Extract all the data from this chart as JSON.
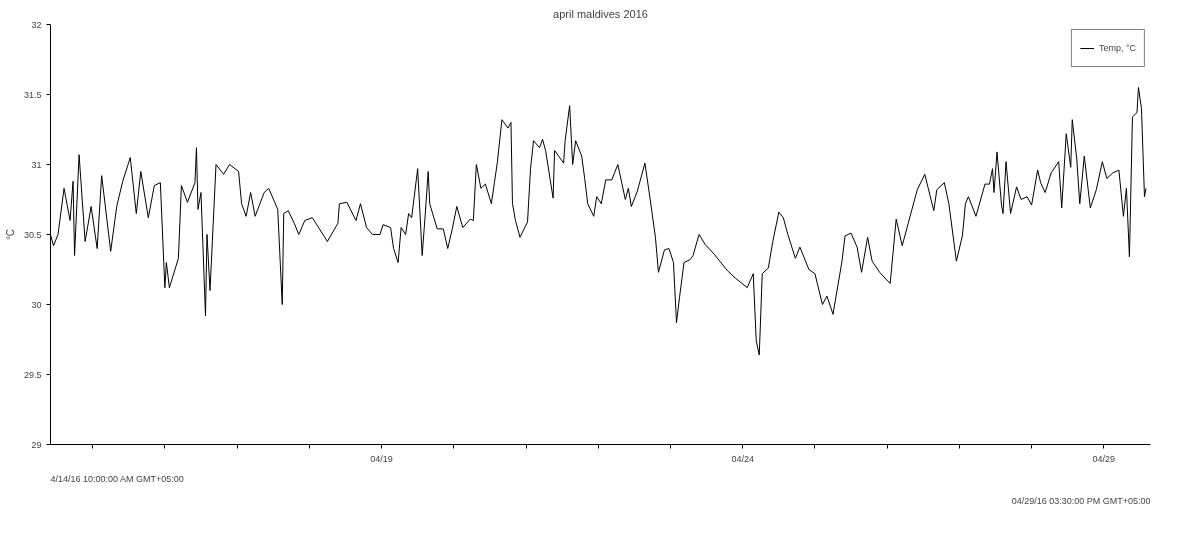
{
  "chart_data": {
    "type": "line",
    "title": "april maldives 2016",
    "ylabel": "°C",
    "annotations": [
      "4/14/16 10:00:00 AM GMT+05:00",
      "04/29/16 03:30:00 PM GMT+05:00"
    ],
    "xlim": [
      "2016-04-14T10:00",
      "2016-04-29T15:30"
    ],
    "xticks": [
      {
        "value": "2016-04-15",
        "label": null
      },
      {
        "value": "2016-04-16",
        "label": null
      },
      {
        "value": "2016-04-17",
        "label": null
      },
      {
        "value": "2016-04-18",
        "label": null
      },
      {
        "value": "2016-04-19",
        "label": "04/19"
      },
      {
        "value": "2016-04-20",
        "label": null
      },
      {
        "value": "2016-04-21",
        "label": null
      },
      {
        "value": "2016-04-22",
        "label": null
      },
      {
        "value": "2016-04-23",
        "label": null
      },
      {
        "value": "2016-04-24",
        "label": "04/24"
      },
      {
        "value": "2016-04-25",
        "label": null
      },
      {
        "value": "2016-04-26",
        "label": null
      },
      {
        "value": "2016-04-27",
        "label": null
      },
      {
        "value": "2016-04-28",
        "label": null
      },
      {
        "value": "2016-04-29",
        "label": "04/29"
      }
    ],
    "ylim": [
      29,
      32
    ],
    "yticks": [
      29,
      29.5,
      30,
      30.5,
      31,
      31.5,
      32
    ],
    "grid": false,
    "legend": "top right",
    "marker": "none",
    "line_style": "solid",
    "series": [
      {
        "name": "Temp, °C",
        "color": "#000000",
        "x": [
          "2016-04-14T10:00",
          "2016-04-14T11:00",
          "2016-04-14T12:30",
          "2016-04-14T14:30",
          "2016-04-14T16:30",
          "2016-04-14T17:30",
          "2016-04-14T18:00",
          "2016-04-14T19:30",
          "2016-04-14T21:30",
          "2016-04-14T23:30",
          "2016-04-15T01:30",
          "2016-04-15T03:00",
          "2016-04-15T06:00",
          "2016-04-15T08:00",
          "2016-04-15T10:00",
          "2016-04-15T12:30",
          "2016-04-15T14:30",
          "2016-04-15T16:00",
          "2016-04-15T18:30",
          "2016-04-15T20:30",
          "2016-04-15T22:30",
          "2016-04-16T00:00",
          "2016-04-16T00:30",
          "2016-04-16T01:30",
          "2016-04-16T04:30",
          "2016-04-16T05:30",
          "2016-04-16T07:30",
          "2016-04-16T10:00",
          "2016-04-16T10:30",
          "2016-04-16T11:00",
          "2016-04-16T12:00",
          "2016-04-16T13:30",
          "2016-04-16T14:00",
          "2016-04-16T15:00",
          "2016-04-16T17:00",
          "2016-04-16T19:30",
          "2016-04-16T21:30",
          "2016-04-17T00:30",
          "2016-04-17T01:30",
          "2016-04-17T03:00",
          "2016-04-17T04:30",
          "2016-04-17T06:00",
          "2016-04-17T09:00",
          "2016-04-17T10:30",
          "2016-04-17T13:30",
          "2016-04-17T15:00",
          "2016-04-17T15:30",
          "2016-04-17T17:00",
          "2016-04-17T19:00",
          "2016-04-17T20:30",
          "2016-04-17T22:30",
          "2016-04-18T01:00",
          "2016-04-18T06:00",
          "2016-04-18T09:30",
          "2016-04-18T10:00",
          "2016-04-18T12:30",
          "2016-04-18T15:30",
          "2016-04-18T17:00",
          "2016-04-18T19:00",
          "2016-04-18T21:00",
          "2016-04-18T23:30",
          "2016-04-19T00:30",
          "2016-04-19T03:00",
          "2016-04-19T04:00",
          "2016-04-19T05:30",
          "2016-04-19T06:30",
          "2016-04-19T08:00",
          "2016-04-19T09:00",
          "2016-04-19T10:00",
          "2016-04-19T12:00",
          "2016-04-19T13:30",
          "2016-04-19T14:30",
          "2016-04-19T15:30",
          "2016-04-19T16:00",
          "2016-04-19T18:30",
          "2016-04-19T20:30",
          "2016-04-19T22:00",
          "2016-04-19T23:30",
          "2016-04-20T01:00",
          "2016-04-20T03:00",
          "2016-04-20T05:30",
          "2016-04-20T06:30",
          "2016-04-20T07:30",
          "2016-04-20T09:00",
          "2016-04-20T10:30",
          "2016-04-20T12:30",
          "2016-04-20T13:30",
          "2016-04-20T14:30",
          "2016-04-20T16:00",
          "2016-04-20T18:00",
          "2016-04-20T19:00",
          "2016-04-20T19:30",
          "2016-04-20T20:30",
          "2016-04-20T22:00",
          "2016-04-21T00:30",
          "2016-04-21T01:30",
          "2016-04-21T02:30",
          "2016-04-21T04:30",
          "2016-04-21T05:30",
          "2016-04-21T06:30",
          "2016-04-21T09:00",
          "2016-04-21T09:30",
          "2016-04-21T12:30",
          "2016-04-21T13:00",
          "2016-04-21T14:30",
          "2016-04-21T15:30",
          "2016-04-21T16:30",
          "2016-04-21T18:30",
          "2016-04-21T19:30",
          "2016-04-21T20:30",
          "2016-04-21T22:30",
          "2016-04-21T23:30",
          "2016-04-22T01:00",
          "2016-04-22T02:30",
          "2016-04-22T04:30",
          "2016-04-22T06:30",
          "2016-04-22T09:00",
          "2016-04-22T10:00",
          "2016-04-22T11:00",
          "2016-04-22T13:00",
          "2016-04-22T15:30",
          "2016-04-22T17:00",
          "2016-04-22T19:00",
          "2016-04-22T20:00",
          "2016-04-22T22:00",
          "2016-04-22T23:30",
          "2016-04-23T01:00",
          "2016-04-23T02:00",
          "2016-04-23T03:00",
          "2016-04-23T04:30",
          "2016-04-23T06:30",
          "2016-04-23T07:30",
          "2016-04-23T09:30",
          "2016-04-23T11:30",
          "2016-04-23T14:30",
          "2016-04-23T19:00",
          "2016-04-23T21:30",
          "2016-04-24T01:30",
          "2016-04-24T03:30",
          "2016-04-24T04:30",
          "2016-04-24T05:30",
          "2016-04-24T06:30",
          "2016-04-24T08:30",
          "2016-04-24T10:00",
          "2016-04-24T12:00",
          "2016-04-24T13:30",
          "2016-04-24T15:00",
          "2016-04-24T17:30",
          "2016-04-24T19:00",
          "2016-04-24T22:00",
          "2016-04-25T00:00",
          "2016-04-25T02:30",
          "2016-04-25T04:00",
          "2016-04-25T06:00",
          "2016-04-25T09:00",
          "2016-04-25T10:00",
          "2016-04-25T12:00",
          "2016-04-25T14:00",
          "2016-04-25T15:30",
          "2016-04-25T17:30",
          "2016-04-25T19:00",
          "2016-04-25T21:30",
          "2016-04-26T01:00",
          "2016-04-26T03:00",
          "2016-04-26T05:00",
          "2016-04-26T07:00",
          "2016-04-26T10:00",
          "2016-04-26T12:30",
          "2016-04-26T15:30",
          "2016-04-26T16:30",
          "2016-04-26T19:00",
          "2016-04-26T20:30",
          "2016-04-26T23:00",
          "2016-04-27T01:00",
          "2016-04-27T02:00",
          "2016-04-27T03:00",
          "2016-04-27T05:30",
          "2016-04-27T08:30",
          "2016-04-27T10:00",
          "2016-04-27T11:00",
          "2016-04-27T11:30",
          "2016-04-27T12:30",
          "2016-04-27T14:00",
          "2016-04-27T14:30",
          "2016-04-27T15:30",
          "2016-04-27T17:00",
          "2016-04-27T19:00",
          "2016-04-27T20:30",
          "2016-04-27T22:30",
          "2016-04-28T00:00",
          "2016-04-28T02:00",
          "2016-04-28T03:00",
          "2016-04-28T04:30",
          "2016-04-28T06:30",
          "2016-04-28T09:00",
          "2016-04-28T10:00",
          "2016-04-28T11:30",
          "2016-04-28T13:00",
          "2016-04-28T13:30",
          "2016-04-28T15:00",
          "2016-04-28T16:00",
          "2016-04-28T17:30",
          "2016-04-28T19:30",
          "2016-04-28T21:30",
          "2016-04-28T23:30",
          "2016-04-29T01:00",
          "2016-04-29T03:00",
          "2016-04-29T05:00",
          "2016-04-29T06:30",
          "2016-04-29T07:30",
          "2016-04-29T08:30",
          "2016-04-29T09:30",
          "2016-04-29T11:00",
          "2016-04-29T11:30",
          "2016-04-29T12:30",
          "2016-04-29T13:30",
          "2016-04-29T14:00"
        ],
        "values": [
          30.5,
          30.42,
          30.5,
          30.83,
          30.6,
          30.88,
          30.35,
          31.07,
          30.45,
          30.7,
          30.4,
          30.92,
          30.38,
          30.7,
          30.88,
          31.05,
          30.65,
          30.95,
          30.62,
          30.85,
          30.87,
          30.12,
          30.3,
          30.12,
          30.33,
          30.85,
          30.73,
          30.87,
          31.12,
          30.68,
          30.8,
          29.92,
          30.5,
          30.1,
          31.0,
          30.93,
          31.0,
          30.95,
          30.72,
          30.63,
          30.8,
          30.63,
          30.8,
          30.83,
          30.68,
          30.0,
          30.65,
          30.67,
          30.58,
          30.5,
          30.6,
          30.62,
          30.45,
          30.58,
          30.72,
          30.73,
          30.6,
          30.72,
          30.55,
          30.5,
          30.5,
          30.57,
          30.55,
          30.4,
          30.3,
          30.55,
          30.5,
          30.65,
          30.62,
          30.97,
          30.35,
          30.64,
          30.95,
          30.72,
          30.54,
          30.54,
          30.4,
          30.54,
          30.7,
          30.55,
          30.61,
          30.6,
          31.0,
          30.83,
          30.86,
          30.72,
          30.87,
          31.02,
          31.32,
          31.26,
          31.3,
          30.72,
          30.6,
          30.48,
          30.59,
          30.97,
          31.17,
          31.12,
          31.18,
          31.1,
          30.76,
          31.1,
          31.01,
          31.17,
          31.42,
          31.0,
          31.17,
          31.06,
          30.9,
          30.72,
          30.63,
          30.77,
          30.72,
          30.89,
          30.89,
          31.0,
          30.75,
          30.83,
          30.7,
          30.81,
          31.01,
          30.79,
          30.48,
          30.23,
          30.39,
          30.4,
          30.3,
          29.87,
          30.05,
          30.3,
          30.32,
          30.35,
          30.5,
          30.43,
          30.36,
          30.24,
          30.19,
          30.12,
          30.22,
          29.74,
          29.64,
          30.22,
          30.26,
          30.45,
          30.66,
          30.62,
          30.5,
          30.33,
          30.41,
          30.25,
          30.22,
          30.0,
          30.06,
          29.93,
          30.31,
          30.49,
          30.51,
          30.41,
          30.23,
          30.48,
          30.31,
          30.23,
          30.15,
          30.61,
          30.42,
          30.58,
          30.82,
          30.93,
          30.67,
          30.82,
          30.87,
          30.72,
          30.31,
          30.49,
          30.72,
          30.77,
          30.63,
          30.86,
          30.86,
          30.97,
          30.8,
          31.09,
          30.71,
          30.65,
          31.02,
          30.65,
          30.84,
          30.75,
          30.77,
          30.71,
          30.96,
          30.87,
          30.8,
          30.94,
          31.02,
          30.69,
          31.22,
          30.98,
          31.32,
          31.04,
          30.72,
          31.06,
          30.69,
          30.82,
          31.02,
          30.9,
          30.94,
          30.96,
          30.63,
          30.83,
          30.34,
          31.34,
          31.37,
          31.55,
          31.4,
          30.77,
          30.83
        ]
      }
    ]
  }
}
